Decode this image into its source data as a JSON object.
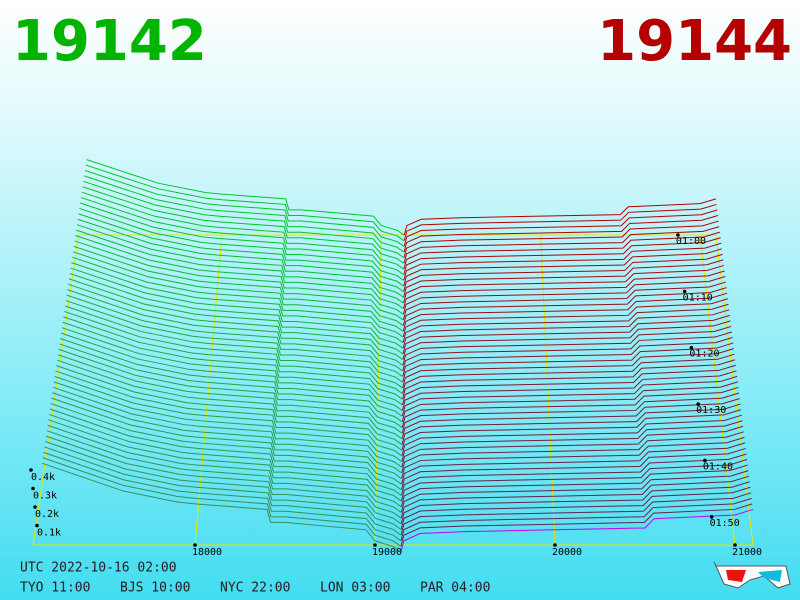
{
  "chart_data": {
    "type": "depth3d",
    "bid": 19142,
    "ask": 19144,
    "bid_color": "#00b400",
    "ask_color": "#b40000",
    "bid_prices": [
      19142,
      19100,
      19000,
      18950,
      18500,
      18420,
      18400,
      18000,
      17900,
      17600,
      17150
    ],
    "bid_depths": [
      0,
      30,
      60,
      120,
      160,
      160,
      230,
      260,
      270,
      330,
      480
    ],
    "ask_prices": [
      19144,
      19160,
      19250,
      19500,
      20000,
      20500,
      20550,
      21000,
      21100
    ],
    "ask_depths": [
      0,
      60,
      100,
      110,
      120,
      130,
      180,
      200,
      230
    ],
    "xlim": [
      17100,
      21100
    ],
    "xticks": [
      18000,
      19000,
      20000,
      21000
    ],
    "zticks": [
      {
        "value": 100,
        "label": "0.1k"
      },
      {
        "value": 200,
        "label": "0.2k"
      },
      {
        "value": 300,
        "label": "0.3k"
      },
      {
        "value": 400,
        "label": "0.4k"
      }
    ],
    "tlim": [
      60,
      115
    ],
    "tticks": [
      {
        "value": 60,
        "label": "01:00"
      },
      {
        "value": 70,
        "label": "01:10"
      },
      {
        "value": 80,
        "label": "01:20"
      },
      {
        "value": 90,
        "label": "01:30"
      },
      {
        "value": 100,
        "label": "01:40"
      },
      {
        "value": 110,
        "label": "01:50"
      }
    ],
    "footer": {
      "utc": "UTC 2022-10-16 02:00",
      "zones": [
        "TYO 11:00",
        "BJS 10:00",
        "NYC 22:00",
        "LON 03:00",
        "PAR 04:00"
      ]
    }
  }
}
